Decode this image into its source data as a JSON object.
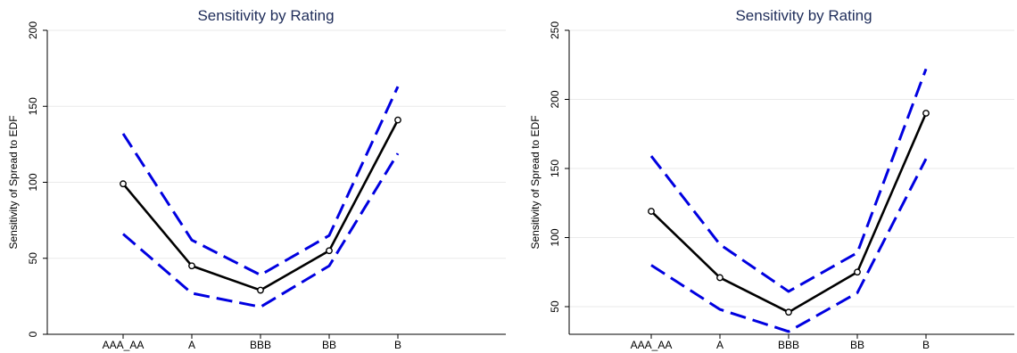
{
  "chart_data": [
    {
      "type": "line",
      "title": "Sensitivity by Rating",
      "xlabel": "",
      "ylabel": "Sensitivity of Spread to EDF",
      "categories": [
        "AAA_AA",
        "A",
        "BBB",
        "BB",
        "B"
      ],
      "ylim": [
        0,
        200
      ],
      "yticks": [
        0,
        50,
        100,
        150,
        200
      ],
      "grid": true,
      "series": [
        {
          "role": "estimate",
          "color": "#000000",
          "style": "solid",
          "markers": true,
          "values": [
            99,
            45,
            29,
            55,
            141
          ]
        },
        {
          "role": "upper",
          "color": "#0000e0",
          "style": "dashed",
          "markers": false,
          "values": [
            132,
            62,
            39,
            65,
            163
          ]
        },
        {
          "role": "lower",
          "color": "#0000e0",
          "style": "dashed",
          "markers": false,
          "values": [
            66,
            27,
            18,
            45,
            119
          ]
        }
      ]
    },
    {
      "type": "line",
      "title": "Sensitivity by Rating",
      "xlabel": "",
      "ylabel": "Sensitivity of Spread to EDF",
      "categories": [
        "AAA_AA",
        "A",
        "BBB",
        "BB",
        "B"
      ],
      "ylim": [
        30,
        250
      ],
      "yticks": [
        50,
        100,
        150,
        200,
        250
      ],
      "grid": true,
      "series": [
        {
          "role": "estimate",
          "color": "#000000",
          "style": "solid",
          "markers": true,
          "values": [
            119,
            71,
            46,
            75,
            190
          ]
        },
        {
          "role": "upper",
          "color": "#0000e0",
          "style": "dashed",
          "markers": false,
          "values": [
            159,
            95,
            61,
            89,
            222
          ]
        },
        {
          "role": "lower",
          "color": "#0000e0",
          "style": "dashed",
          "markers": false,
          "values": [
            80,
            48,
            32,
            60,
            157
          ]
        }
      ]
    }
  ]
}
